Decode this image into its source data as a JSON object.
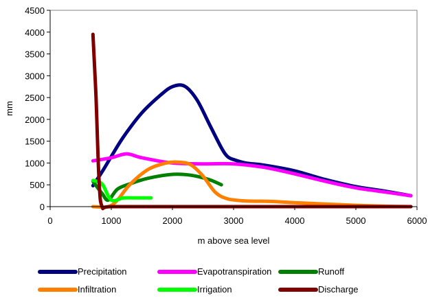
{
  "chart_data": {
    "type": "line",
    "title": "",
    "xlabel": "m above sea level",
    "ylabel": "mm",
    "xlim": [
      0,
      6000
    ],
    "ylim": [
      0,
      4500
    ],
    "xticks": [
      0,
      1000,
      2000,
      3000,
      4000,
      5000,
      6000
    ],
    "yticks": [
      0,
      500,
      1000,
      1500,
      2000,
      2500,
      3000,
      3500,
      4000,
      4500
    ],
    "grid": false,
    "legend_position": "bottom",
    "series": [
      {
        "name": "Precipitation",
        "color": "#000080",
        "x": [
          700,
          850,
          1000,
          1200,
          1500,
          1800,
          2000,
          2200,
          2400,
          2600,
          2800,
          2900,
          3000,
          3200,
          3500,
          4000,
          4500,
          5000,
          5500,
          5900
        ],
        "y": [
          480,
          800,
          1150,
          1600,
          2150,
          2550,
          2750,
          2760,
          2450,
          1900,
          1350,
          1150,
          1080,
          1000,
          950,
          820,
          620,
          460,
          350,
          250
        ]
      },
      {
        "name": "Evapotranspiration",
        "color": "#ff00ff",
        "x": [
          700,
          1000,
          1250,
          1500,
          2000,
          2500,
          3000,
          3500,
          4000,
          4500,
          5000,
          5500,
          5900
        ],
        "y": [
          1050,
          1120,
          1210,
          1120,
          1000,
          980,
          980,
          900,
          750,
          580,
          430,
          330,
          250
        ]
      },
      {
        "name": "Runoff",
        "color": "#008000",
        "x": [
          700,
          850,
          950,
          1100,
          1300,
          1600,
          2000,
          2300,
          2600,
          2800
        ],
        "y": [
          580,
          300,
          150,
          400,
          520,
          650,
          740,
          720,
          620,
          500
        ]
      },
      {
        "name": "Infiltration",
        "color": "#ff8000",
        "x": [
          700,
          950,
          1100,
          1300,
          1600,
          1900,
          2100,
          2300,
          2500,
          2700,
          2900,
          3200,
          3600,
          4000,
          4500,
          5000,
          5500,
          5900
        ],
        "y": [
          0,
          0,
          150,
          500,
          850,
          1000,
          1020,
          960,
          700,
          330,
          180,
          130,
          120,
          90,
          60,
          30,
          10,
          0
        ]
      },
      {
        "name": "Irrigation",
        "color": "#00ff00",
        "x": [
          700,
          850,
          1000,
          1200,
          1450,
          1650
        ],
        "y": [
          600,
          520,
          150,
          200,
          200,
          200
        ]
      },
      {
        "name": "Discharge",
        "color": "#800000",
        "x": [
          700,
          750,
          800,
          850,
          1000,
          2000,
          3000,
          4000,
          5000,
          5900
        ],
        "y": [
          3950,
          2500,
          600,
          0,
          0,
          0,
          0,
          0,
          0,
          0
        ]
      }
    ]
  }
}
